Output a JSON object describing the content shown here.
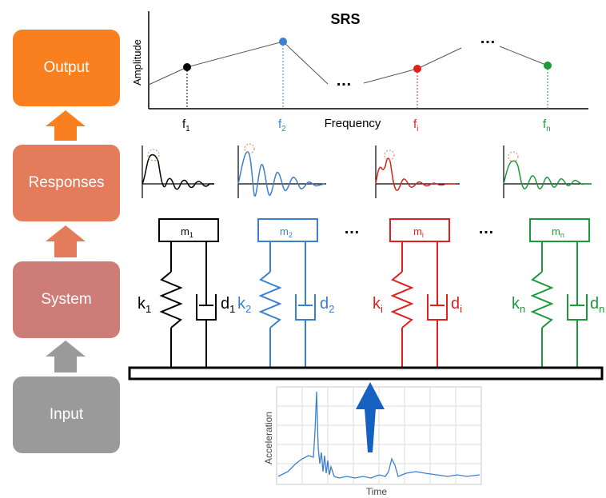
{
  "stages": {
    "output": {
      "label": "Output",
      "color": "#f97f1f"
    },
    "responses": {
      "label": "Responses",
      "color": "#e47b5b"
    },
    "system": {
      "label": "System",
      "color": "#cd7c78"
    },
    "input": {
      "label": "Input",
      "color": "#9a9a9a"
    }
  },
  "stage_arrow_colors": {
    "system_to_responses": "#e47b5b",
    "input_to_system": "#9a9a9a",
    "responses_to_output": "#f97f1f"
  },
  "srs": {
    "title": "SRS",
    "ylabel": "Amplitude",
    "xlabel": "Frequency",
    "ellipsis": "…",
    "ticks": [
      {
        "base": "f",
        "sub": "1",
        "color": "#000000"
      },
      {
        "base": "f",
        "sub": "2",
        "color": "#3b7fd0"
      },
      {
        "base": "f",
        "sub": "i",
        "color": "#e0201c"
      },
      {
        "base": "f",
        "sub": "n",
        "color": "#1a9a3a"
      }
    ]
  },
  "oscillators": [
    {
      "mass": {
        "base": "m",
        "sub": "1"
      },
      "spring": {
        "base": "k",
        "sub": "1"
      },
      "damper": {
        "base": "d",
        "sub": "1"
      },
      "color": "#000000"
    },
    {
      "mass": {
        "base": "m",
        "sub": "2"
      },
      "spring": {
        "base": "k",
        "sub": "2"
      },
      "damper": {
        "base": "d",
        "sub": "2"
      },
      "color": "#3b7fd0"
    },
    {
      "mass": {
        "base": "m",
        "sub": "i"
      },
      "spring": {
        "base": "k",
        "sub": "i"
      },
      "damper": {
        "base": "d",
        "sub": "i"
      },
      "color": "#e0201c"
    },
    {
      "mass": {
        "base": "m",
        "sub": "n"
      },
      "spring": {
        "base": "k",
        "sub": "n"
      },
      "damper": {
        "base": "d",
        "sub": "n"
      },
      "color": "#1a9a3a"
    }
  ],
  "system_ellipsis": [
    "…",
    "…"
  ],
  "input_plot": {
    "ylabel": "Acceleration",
    "xlabel": "Time",
    "arrow_color": "#1560c0",
    "line_color": "#3b7fd0"
  }
}
